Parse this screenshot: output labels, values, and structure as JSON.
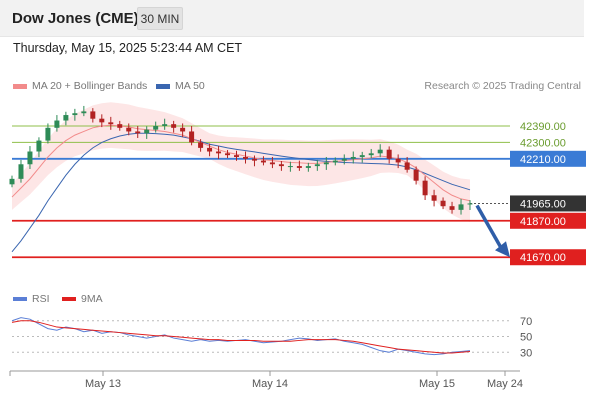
{
  "header": {
    "title": "Dow Jones (CME)",
    "timeframe": "30 MIN",
    "datetime": "Thursday, May 15, 2025 5:23:44 AM CET"
  },
  "legend": {
    "ma20_label": "MA 20 + Bollinger Bands",
    "ma20_color": "#f28b8b",
    "ma50_label": "MA 50",
    "ma50_color": "#3a66b0",
    "credit": "Research © 2025 Trading Central"
  },
  "rsi_legend": {
    "rsi_label": "RSI",
    "rsi_color": "#5b7fd6",
    "ma_label": "9MA",
    "ma_color": "#e0201f"
  },
  "chart_data": [
    {
      "type": "candlestick",
      "title": "Dow Jones (CME)",
      "timeframe": "30 MIN",
      "x_labels": [
        "May 13",
        "May 14",
        "May 15",
        "May 24"
      ],
      "ylim": [
        41600,
        42560
      ],
      "current_price": 41965.0,
      "levels": [
        {
          "value": 42390.0,
          "label": "42390.00",
          "kind": "resistance"
        },
        {
          "value": 42300.0,
          "label": "42300.00",
          "kind": "resistance"
        },
        {
          "value": 42210.0,
          "label": "42210.00",
          "kind": "pivot"
        },
        {
          "value": 41870.0,
          "label": "41870.00",
          "kind": "support"
        },
        {
          "value": 41670.0,
          "label": "41670.00",
          "kind": "support"
        }
      ],
      "forecast": {
        "from": 41965,
        "to": 41670,
        "direction": "down"
      },
      "series": [
        {
          "name": "Price",
          "close": [
            42100,
            42180,
            42250,
            42310,
            42380,
            42420,
            42450,
            42460,
            42470,
            42430,
            42410,
            42400,
            42380,
            42360,
            42350,
            42370,
            42390,
            42400,
            42380,
            42360,
            42300,
            42270,
            42250,
            42240,
            42230,
            42220,
            42210,
            42200,
            42190,
            42180,
            42170,
            42170,
            42160,
            42170,
            42180,
            42190,
            42200,
            42210,
            42220,
            42230,
            42240,
            42260,
            42210,
            42190,
            42150,
            42090,
            42010,
            41980,
            41950,
            41930,
            41960,
            41965
          ]
        },
        {
          "name": "MA 20 + Bollinger Bands",
          "values": [
            42000,
            42050,
            42100,
            42160,
            42220,
            42270,
            42310,
            42340,
            42360,
            42380,
            42390,
            42395,
            42390,
            42385,
            42375,
            42370,
            42365,
            42360,
            42350,
            42340,
            42320,
            42300,
            42280,
            42260,
            42245,
            42235,
            42225,
            42215,
            42205,
            42200,
            42195,
            42190,
            42188,
            42185,
            42185,
            42190,
            42195,
            42200,
            42205,
            42210,
            42215,
            42225,
            42220,
            42210,
            42190,
            42160,
            42120,
            42080,
            42040,
            42010,
            41990,
            41980
          ]
        },
        {
          "name": "MA 50",
          "values": [
            41700,
            41760,
            41830,
            41900,
            41980,
            42050,
            42120,
            42180,
            42230,
            42270,
            42300,
            42320,
            42335,
            42345,
            42350,
            42350,
            42348,
            42345,
            42340,
            42330,
            42320,
            42305,
            42290,
            42280,
            42270,
            42262,
            42255,
            42248,
            42240,
            42232,
            42225,
            42218,
            42212,
            42206,
            42200,
            42196,
            42193,
            42190,
            42188,
            42186,
            42184,
            42183,
            42180,
            42175,
            42165,
            42150,
            42130,
            42110,
            42090,
            42070,
            42055,
            42040
          ]
        }
      ]
    },
    {
      "type": "line",
      "title": "RSI",
      "yticks": [
        70,
        50,
        30
      ],
      "ylim": [
        10,
        90
      ],
      "series": [
        {
          "name": "RSI",
          "values": [
            70,
            74,
            72,
            66,
            60,
            58,
            62,
            60,
            56,
            58,
            54,
            56,
            55,
            52,
            50,
            48,
            50,
            52,
            48,
            46,
            44,
            46,
            44,
            45,
            44,
            45,
            46,
            44,
            42,
            43,
            44,
            46,
            48,
            47,
            45,
            46,
            47,
            44,
            42,
            40,
            36,
            32,
            30,
            34,
            32,
            30,
            28,
            27,
            28,
            30,
            31,
            32
          ]
        },
        {
          "name": "9MA",
          "values": [
            68,
            70,
            70,
            68,
            65,
            62,
            61,
            60,
            59,
            58,
            57,
            56,
            55,
            54,
            53,
            52,
            51,
            51,
            50,
            49,
            48,
            47,
            46,
            46,
            45,
            45,
            45,
            45,
            44,
            44,
            44,
            44,
            45,
            46,
            46,
            46,
            46,
            45,
            44,
            42,
            40,
            38,
            36,
            34,
            33,
            32,
            31,
            30,
            29,
            29,
            30,
            31
          ]
        }
      ]
    }
  ]
}
